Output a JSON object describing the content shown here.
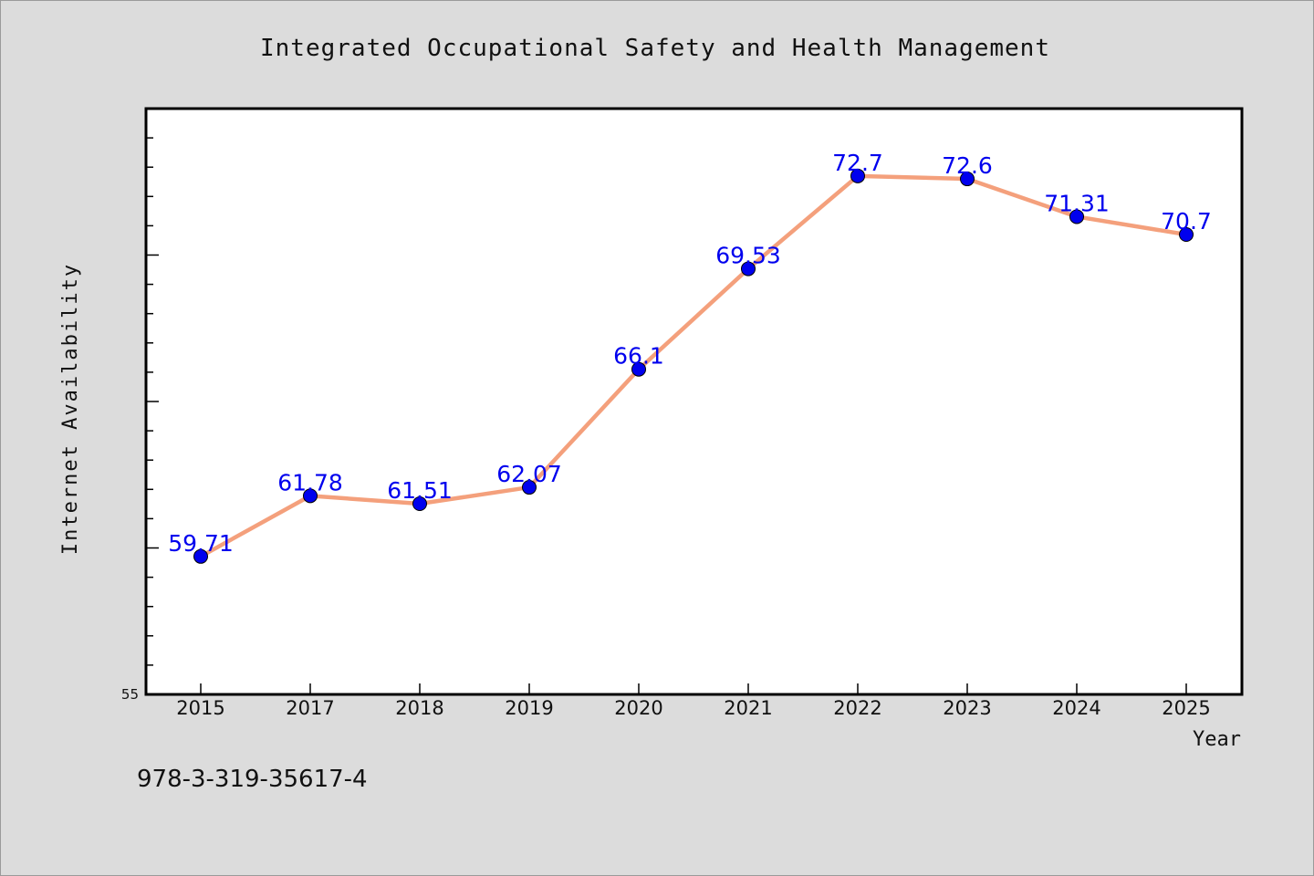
{
  "chart_data": {
    "type": "line",
    "title": "Integrated Occupational Safety and Health Management",
    "xlabel": "Year",
    "ylabel": "Internet Availability",
    "categories": [
      "2015",
      "2017",
      "2018",
      "2019",
      "2020",
      "2021",
      "2022",
      "2023",
      "2024",
      "2025"
    ],
    "series": [
      {
        "values": [
          59.71,
          61.78,
          61.51,
          62.07,
          66.1,
          69.53,
          72.7,
          72.6,
          71.31,
          70.7
        ],
        "data_labels": [
          "59.71",
          "61.78",
          "61.51",
          "62.07",
          "66.1",
          "69.53",
          "72.7",
          "72.6",
          "71.31",
          "70.7"
        ]
      }
    ],
    "ylim": [
      55,
      75
    ],
    "ytick_labels": [
      "55"
    ],
    "grid": false,
    "legend": "none",
    "colors": {
      "line": "#f4a07c",
      "marker": "#0000ee",
      "data_label": "#0000ee",
      "plot_background": "#ffffff",
      "page_background": "#dcdcdc"
    }
  },
  "footer": {
    "isbn": "978-3-319-35617-4"
  }
}
